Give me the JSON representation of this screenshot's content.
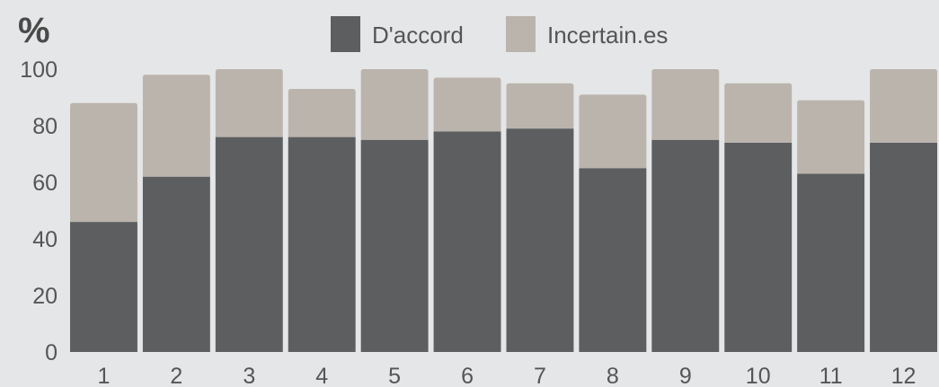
{
  "chart_data": {
    "type": "bar",
    "stacked": true,
    "unit_label": "%",
    "categories": [
      "1",
      "2",
      "3",
      "4",
      "5",
      "6",
      "7",
      "8",
      "9",
      "10",
      "11",
      "12"
    ],
    "series": [
      {
        "name": "D'accord",
        "color": "#5d5e60",
        "values": [
          46,
          62,
          76,
          76,
          75,
          78,
          79,
          65,
          75,
          74,
          63,
          74
        ]
      },
      {
        "name": "Incertain.es",
        "color": "#bbb4ad",
        "values": [
          42,
          36,
          24,
          17,
          25,
          19,
          16,
          26,
          25,
          21,
          26,
          26
        ]
      }
    ],
    "yticks": [
      0,
      20,
      40,
      60,
      80,
      100
    ],
    "ylim": [
      0,
      100
    ],
    "xlabel": "",
    "ylabel": "",
    "grid": false,
    "legend_position": "top-center",
    "background": "#e5e6e7"
  }
}
